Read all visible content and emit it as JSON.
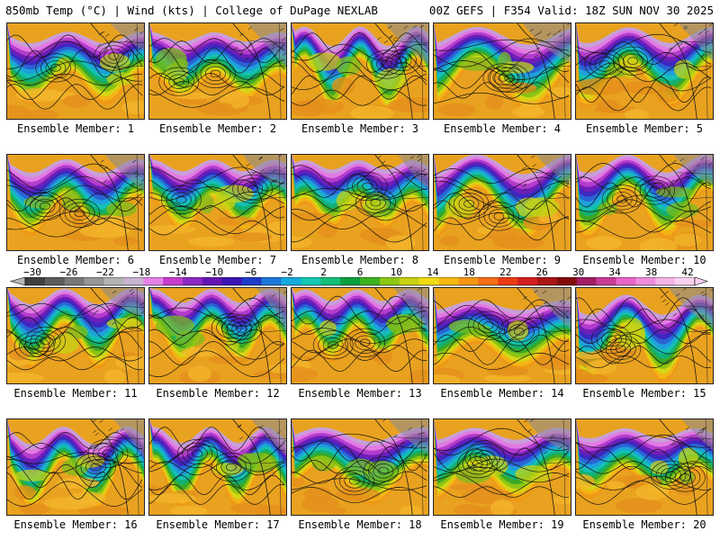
{
  "header": {
    "title_left": "850mb Temp (°C) | Wind (kts) | College of DuPage NEXLAB",
    "title_right": "00Z GEFS | F354 Valid: 18Z SUN NOV 30 2025"
  },
  "panels": [
    {
      "label": "Ensemble Member: 1"
    },
    {
      "label": "Ensemble Member: 2"
    },
    {
      "label": "Ensemble Member: 3"
    },
    {
      "label": "Ensemble Member: 4"
    },
    {
      "label": "Ensemble Member: 5"
    },
    {
      "label": "Ensemble Member: 6"
    },
    {
      "label": "Ensemble Member: 7"
    },
    {
      "label": "Ensemble Member: 8"
    },
    {
      "label": "Ensemble Member: 9"
    },
    {
      "label": "Ensemble Member: 10"
    },
    {
      "label": "Ensemble Member: 11"
    },
    {
      "label": "Ensemble Member: 12"
    },
    {
      "label": "Ensemble Member: 13"
    },
    {
      "label": "Ensemble Member: 14"
    },
    {
      "label": "Ensemble Member: 15"
    },
    {
      "label": "Ensemble Member: 16"
    },
    {
      "label": "Ensemble Member: 17"
    },
    {
      "label": "Ensemble Member: 18"
    },
    {
      "label": "Ensemble Member: 19"
    },
    {
      "label": "Ensemble Member: 20"
    }
  ],
  "colorbar": {
    "tick_labels": [
      "−30",
      "−26",
      "−22",
      "−18",
      "−14",
      "−10",
      "−6",
      "−2",
      "2",
      "6",
      "10",
      "14",
      "18",
      "22",
      "26",
      "30",
      "34",
      "38",
      "42"
    ],
    "colors": [
      "#3f3f3f",
      "#5c5c5c",
      "#787878",
      "#969696",
      "#b4b4b4",
      "#c8b4d2",
      "#e682e6",
      "#c83ccd",
      "#8c28c3",
      "#6414b4",
      "#3c14b4",
      "#1e3cc8",
      "#1e78dc",
      "#14aadc",
      "#14c8b4",
      "#14be78",
      "#0aa03c",
      "#3cb41e",
      "#8cc814",
      "#c8d214",
      "#f0dc14",
      "#f5b914",
      "#f59614",
      "#f56e14",
      "#eb3c14",
      "#d21e1e",
      "#aa1414",
      "#820a0a",
      "#a01e64",
      "#c83c96",
      "#e664c8",
      "#f08cdc",
      "#f5b4e6",
      "#fad2f0"
    ]
  }
}
